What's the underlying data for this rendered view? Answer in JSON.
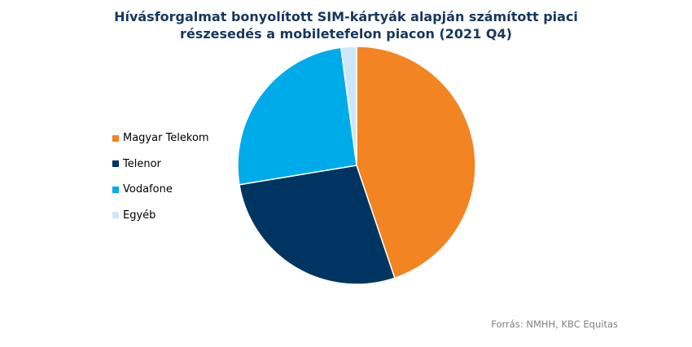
{
  "chart_data": {
    "type": "pie",
    "title_lines": [
      "Hívásforgalmat bonyolított SIM-kártyák alapján számított piaci",
      "részesedés a mobiletefelon piacon (2021 Q4)"
    ],
    "categories": [
      "Magyar Telekom",
      "Telenor",
      "Vodafone",
      "Egyéb"
    ],
    "values": [
      44.8,
      27.6,
      25.5,
      2.1
    ],
    "colors": [
      "#f28422",
      "#003562",
      "#00abe9",
      "#cce7f7"
    ],
    "start_angle_deg": 0,
    "direction": "clockwise",
    "legend_position": "left"
  },
  "source": "Forrás: NMHH, KBC Equitas"
}
